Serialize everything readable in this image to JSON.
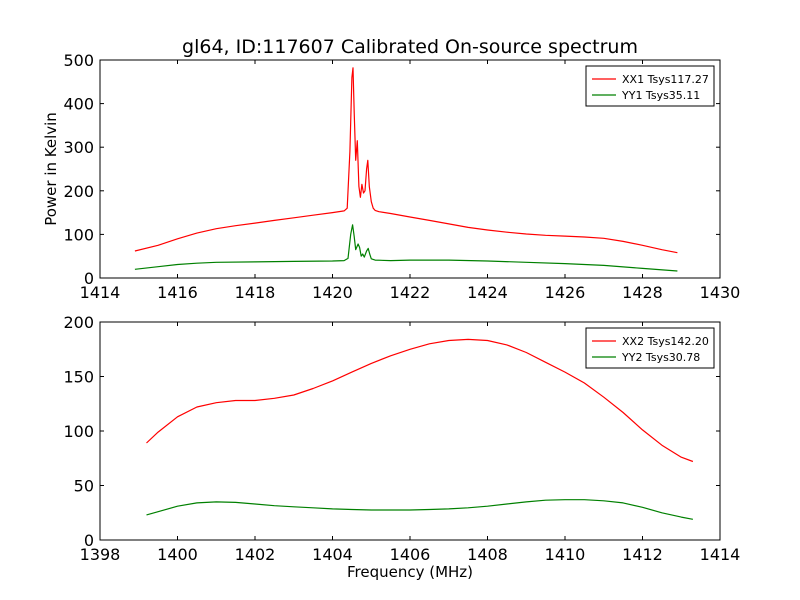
{
  "title": "gl64, ID:117607 Calibrated On-source spectrum",
  "ylabel": "Power in Kelvin",
  "xlabel": "Frequency (MHz)",
  "chart_data": [
    {
      "type": "line",
      "title": "gl64, ID:117607 Calibrated On-source spectrum",
      "ylabel": "Power in Kelvin",
      "xlabel": "",
      "xlim": [
        1414,
        1430
      ],
      "ylim": [
        0,
        500
      ],
      "xticks": [
        1414,
        1416,
        1418,
        1420,
        1422,
        1424,
        1426,
        1428,
        1430
      ],
      "yticks": [
        0,
        100,
        200,
        300,
        400,
        500
      ],
      "legend_position": "top-right",
      "series": [
        {
          "name": "XX1 Tsys117.27",
          "color": "#ff0000",
          "x": [
            1414.9,
            1415.5,
            1416.0,
            1416.5,
            1417.0,
            1417.5,
            1418.0,
            1418.5,
            1419.0,
            1419.5,
            1420.0,
            1420.3,
            1420.38,
            1420.45,
            1420.5,
            1420.53,
            1420.56,
            1420.6,
            1420.64,
            1420.68,
            1420.72,
            1420.76,
            1420.8,
            1420.84,
            1420.88,
            1420.91,
            1420.95,
            1421.0,
            1421.05,
            1421.1,
            1421.2,
            1421.5,
            1422.0,
            1422.5,
            1423.0,
            1423.5,
            1424.0,
            1424.5,
            1425.0,
            1425.5,
            1426.0,
            1426.5,
            1427.0,
            1427.5,
            1428.0,
            1428.5,
            1428.9
          ],
          "y": [
            62,
            75,
            90,
            103,
            113,
            120,
            126,
            132,
            138,
            144,
            150,
            154,
            160,
            290,
            460,
            482,
            380,
            270,
            315,
            210,
            185,
            215,
            195,
            200,
            250,
            270,
            210,
            175,
            160,
            155,
            152,
            148,
            140,
            132,
            124,
            116,
            110,
            105,
            101,
            98,
            96,
            94,
            91,
            84,
            75,
            65,
            58
          ]
        },
        {
          "name": "YY1 Tsys35.11",
          "color": "#008000",
          "x": [
            1414.9,
            1415.5,
            1416.0,
            1416.5,
            1417.0,
            1418.0,
            1419.0,
            1420.0,
            1420.3,
            1420.4,
            1420.47,
            1420.52,
            1420.56,
            1420.6,
            1420.66,
            1420.7,
            1420.74,
            1420.78,
            1420.82,
            1420.88,
            1420.92,
            1420.96,
            1421.0,
            1421.1,
            1421.5,
            1422.0,
            1423.0,
            1424.0,
            1425.0,
            1426.0,
            1427.0,
            1428.0,
            1428.9
          ],
          "y": [
            20,
            26,
            31,
            34,
            36,
            37,
            38,
            39,
            40,
            45,
            100,
            122,
            95,
            65,
            78,
            70,
            50,
            55,
            48,
            62,
            68,
            55,
            44,
            41,
            40,
            41,
            41,
            39,
            36,
            33,
            29,
            22,
            16
          ]
        }
      ]
    },
    {
      "type": "line",
      "title": "",
      "ylabel": "",
      "xlabel": "Frequency (MHz)",
      "xlim": [
        1398,
        1414
      ],
      "ylim": [
        0,
        200
      ],
      "xticks": [
        1398,
        1400,
        1402,
        1404,
        1406,
        1408,
        1410,
        1412,
        1414
      ],
      "yticks": [
        0,
        50,
        100,
        150,
        200
      ],
      "legend_position": "top-right",
      "series": [
        {
          "name": "XX2 Tsys142.20",
          "color": "#ff0000",
          "x": [
            1399.2,
            1399.5,
            1400.0,
            1400.5,
            1401.0,
            1401.5,
            1402.0,
            1402.5,
            1403.0,
            1403.5,
            1404.0,
            1404.5,
            1405.0,
            1405.5,
            1406.0,
            1406.5,
            1407.0,
            1407.5,
            1408.0,
            1408.5,
            1409.0,
            1409.5,
            1410.0,
            1410.5,
            1411.0,
            1411.5,
            1412.0,
            1412.5,
            1413.0,
            1413.3
          ],
          "y": [
            89,
            99,
            113,
            122,
            126,
            128,
            128,
            130,
            133,
            139,
            146,
            154,
            162,
            169,
            175,
            180,
            183,
            184,
            183,
            179,
            172,
            163,
            154,
            144,
            131,
            117,
            101,
            87,
            76,
            72
          ]
        },
        {
          "name": "YY2 Tsys30.78",
          "color": "#008000",
          "x": [
            1399.2,
            1399.5,
            1400.0,
            1400.5,
            1401.0,
            1401.5,
            1402.0,
            1402.5,
            1403.0,
            1403.5,
            1404.0,
            1404.5,
            1405.0,
            1405.5,
            1406.0,
            1406.5,
            1407.0,
            1407.5,
            1408.0,
            1408.5,
            1409.0,
            1409.5,
            1410.0,
            1410.5,
            1411.0,
            1411.5,
            1412.0,
            1412.5,
            1413.0,
            1413.3
          ],
          "y": [
            23,
            26,
            31,
            34,
            35,
            34.5,
            33,
            31.5,
            30.5,
            29.5,
            28.5,
            28,
            27.5,
            27.5,
            27.5,
            28,
            28.5,
            29.5,
            31,
            33,
            35,
            36.5,
            37,
            37,
            36,
            34,
            30,
            25,
            21,
            19
          ]
        }
      ]
    }
  ]
}
